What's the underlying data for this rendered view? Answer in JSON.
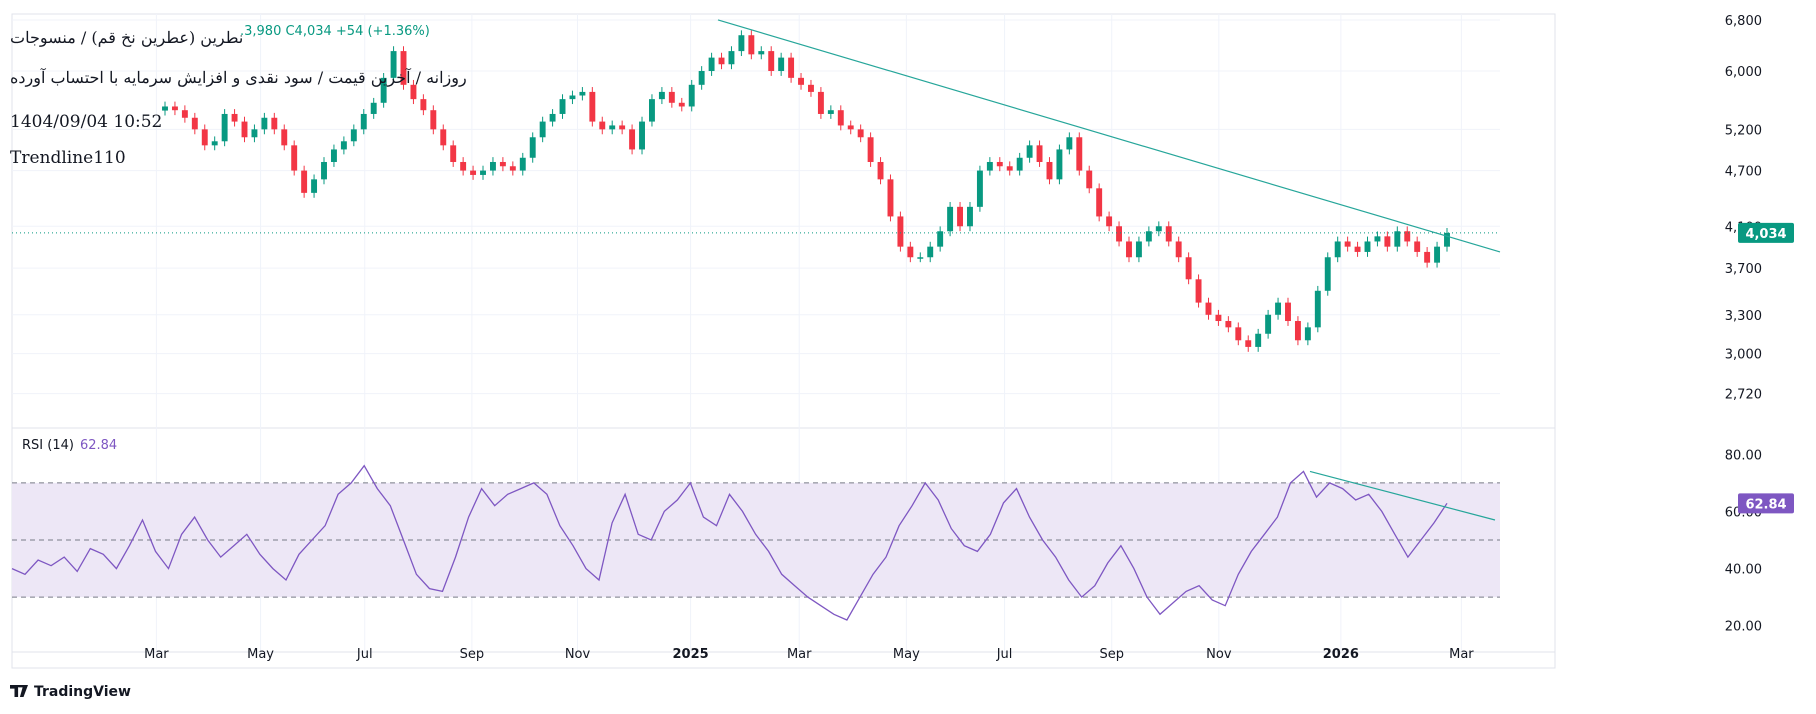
{
  "header": {
    "title": "نطرین (عطرین نخ قم) / منسوجات",
    "subtitle": "روزانه / آخرین قیمت / سود نقدی و افزایش سرمایه با احتساب آورده",
    "date": "1404/09/04 10:52",
    "name": "Trendline110",
    "ohlc_text": ".3,980  C4,034  +54 (+1.36%)"
  },
  "rsi_header": {
    "label": "RSI (14)",
    "value": "62.84"
  },
  "branding": {
    "label": "TradingView"
  },
  "colors": {
    "up": "#089981",
    "down": "#f23645",
    "trend": "#26a69a",
    "rsi_line": "#7e57c2",
    "rsi_band": "#ede7f6"
  },
  "chart_data": [
    {
      "type": "candlestick",
      "scale": "log",
      "y_ticks": [
        2720,
        3000,
        3300,
        3700,
        4100,
        4700,
        5200,
        6000,
        6800
      ],
      "y_tick_labels": [
        "2,720",
        "3,000",
        "3,300",
        "3,700",
        "4,100",
        "4,700",
        "5,200",
        "6,000",
        "6,800"
      ],
      "ylim": [
        2500,
        6900
      ],
      "x_tick_labels": [
        "Mar",
        "May",
        "Jul",
        "Sep",
        "Nov",
        "2025",
        "Mar",
        "May",
        "Jul",
        "Sep",
        "Nov",
        "2026",
        "Mar"
      ],
      "last_price": 4034,
      "last_price_label": "4,034",
      "closes": [
        5500,
        5450,
        5350,
        5200,
        5000,
        5050,
        5400,
        5300,
        5100,
        5200,
        5350,
        5200,
        5000,
        4700,
        4450,
        4600,
        4800,
        4950,
        5050,
        5200,
        5400,
        5550,
        5900,
        6300,
        5800,
        5600,
        5450,
        5200,
        5000,
        4800,
        4700,
        4650,
        4700,
        4800,
        4750,
        4700,
        4850,
        5100,
        5300,
        5400,
        5600,
        5650,
        5700,
        5300,
        5200,
        5250,
        5200,
        4950,
        5300,
        5600,
        5700,
        5550,
        5500,
        5800,
        6000,
        6200,
        6100,
        6300,
        6550,
        6250,
        6300,
        6000,
        6200,
        5900,
        5800,
        5700,
        5400,
        5450,
        5250,
        5200,
        5100,
        4800,
        4600,
        4200,
        3900,
        3800,
        3800,
        3900,
        4050,
        4300,
        4100,
        4300,
        4700,
        4800,
        4750,
        4700,
        4850,
        5000,
        4800,
        4600,
        4950,
        5100,
        4700,
        4500,
        4200,
        4100,
        3950,
        3800,
        3950,
        4050,
        4100,
        3950,
        3800,
        3600,
        3400,
        3300,
        3250,
        3200,
        3100,
        3050,
        3150,
        3300,
        3400,
        3250,
        3100,
        3200,
        3500,
        3800,
        3950,
        3900,
        3850,
        3950,
        4000,
        3900,
        4050,
        3950,
        3850,
        3750,
        3900,
        4034
      ],
      "trendline": {
        "from": 6800,
        "to": 3850
      }
    },
    {
      "type": "line",
      "series": [
        {
          "values": [
            40,
            38,
            43,
            41,
            44,
            39,
            47,
            45,
            40,
            48,
            57,
            46,
            40,
            52,
            58,
            50,
            44,
            48,
            52,
            45,
            40,
            36,
            45,
            50,
            55,
            66,
            70,
            76,
            68,
            62,
            50,
            38,
            33,
            32,
            44,
            58,
            68,
            62,
            66,
            68,
            70,
            66,
            55,
            48,
            40,
            36,
            56,
            66,
            52,
            50,
            60,
            64,
            70,
            58,
            55,
            66,
            60,
            52,
            46,
            38,
            34,
            30,
            27,
            24,
            22,
            30,
            38,
            44,
            55,
            62,
            70,
            64,
            54,
            48,
            46,
            52,
            63,
            68,
            58,
            50,
            44,
            36,
            30,
            34,
            42,
            48,
            40,
            30,
            24,
            28,
            32,
            34,
            29,
            27,
            38,
            46,
            52,
            58,
            70,
            74,
            65,
            70,
            68,
            64,
            66,
            60,
            52,
            44,
            50,
            56,
            62.84
          ]
        }
      ],
      "y_ticks": [
        20,
        40,
        60,
        80
      ],
      "y_tick_labels": [
        "20.00",
        "40.00",
        "60.00",
        "80.00"
      ],
      "ylim": [
        15,
        85
      ],
      "bands": [
        30,
        50,
        70
      ],
      "last_value_label": "62.84",
      "trendline": {
        "from": 74,
        "to": 57
      }
    }
  ]
}
